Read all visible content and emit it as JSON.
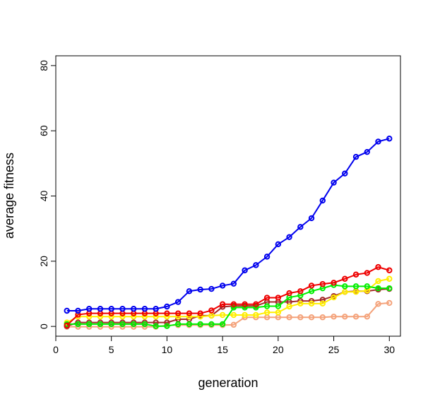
{
  "chart_data": {
    "type": "line",
    "title": "",
    "xlabel": "generation",
    "ylabel": "average fitness",
    "xlim": [
      0,
      31
    ],
    "ylim": [
      -3,
      83
    ],
    "xticks": [
      0,
      5,
      10,
      15,
      20,
      25,
      30
    ],
    "yticks": [
      0,
      20,
      40,
      60,
      80
    ],
    "grid": false,
    "x": [
      1,
      2,
      3,
      4,
      5,
      6,
      7,
      8,
      9,
      10,
      11,
      12,
      13,
      14,
      15,
      16,
      17,
      18,
      19,
      20,
      21,
      22,
      23,
      24,
      25,
      26,
      27,
      28,
      29,
      30
    ],
    "series": [
      {
        "color": "#0000ee",
        "values": [
          4.8,
          4.8,
          5.4,
          5.4,
          5.4,
          5.4,
          5.4,
          5.4,
          5.4,
          6.1,
          7.5,
          10.8,
          11.3,
          11.5,
          12.5,
          13.1,
          17.2,
          18.8,
          21.4,
          25.2,
          27.4,
          30.5,
          33.2,
          38.6,
          44.1,
          46.9,
          52.0,
          53.5,
          56.7,
          57.6
        ]
      },
      {
        "color": "#ee0000",
        "values": [
          0.3,
          3.6,
          4.0,
          4.0,
          4.0,
          4.0,
          4.0,
          4.0,
          4.0,
          4.0,
          4.0,
          4.0,
          4.0,
          4.9,
          6.8,
          6.8,
          6.8,
          6.8,
          8.8,
          8.8,
          10.2,
          10.8,
          12.5,
          13.0,
          13.4,
          14.6,
          15.9,
          16.4,
          18.2,
          17.2
        ]
      },
      {
        "color": "#00ee00",
        "values": [
          0.7,
          0.7,
          0.7,
          0.7,
          0.7,
          0.7,
          0.7,
          0.7,
          0.1,
          0.1,
          0.7,
          0.7,
          0.7,
          0.7,
          0.7,
          5.8,
          5.8,
          5.8,
          6.2,
          6.2,
          8.9,
          9.5,
          10.8,
          11.7,
          12.7,
          12.3,
          12.3,
          12.3,
          11.7,
          11.7
        ]
      },
      {
        "color": "#ffee00",
        "values": [
          1.2,
          3.0,
          3.0,
          3.0,
          3.0,
          3.0,
          3.0,
          3.0,
          3.0,
          3.0,
          3.0,
          3.0,
          3.0,
          3.3,
          3.5,
          3.5,
          3.5,
          3.5,
          4.3,
          4.3,
          6.1,
          7.0,
          7.0,
          7.0,
          8.9,
          10.6,
          10.6,
          11.0,
          13.9,
          14.6
        ]
      },
      {
        "color": "#a52a2a",
        "values": [
          0.1,
          1.2,
          1.2,
          1.2,
          1.2,
          1.2,
          1.2,
          1.2,
          1.2,
          1.2,
          2.2,
          2.2,
          3.3,
          3.3,
          6.0,
          6.3,
          6.3,
          6.3,
          7.5,
          7.5,
          7.5,
          7.8,
          7.8,
          8.2,
          9.3,
          10.6,
          10.8,
          10.8,
          11.3,
          11.5
        ]
      },
      {
        "color": "#f4a27a",
        "values": [
          -0.1,
          -0.1,
          -0.1,
          -0.1,
          -0.1,
          -0.1,
          -0.1,
          -0.1,
          -0.1,
          0.3,
          0.4,
          0.4,
          0.4,
          0.4,
          0.4,
          0.5,
          2.8,
          2.8,
          2.8,
          2.8,
          2.8,
          2.8,
          2.8,
          2.8,
          3.0,
          3.0,
          3.0,
          3.0,
          6.9,
          7.2
        ]
      }
    ]
  }
}
